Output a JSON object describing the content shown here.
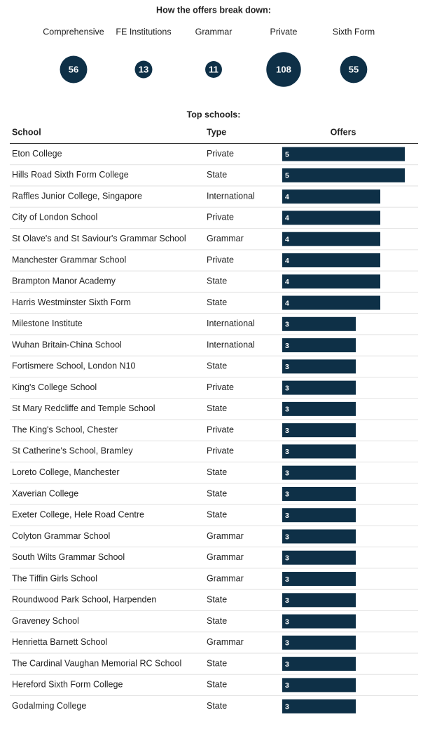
{
  "breakdown": {
    "title": "How the offers break down:",
    "categories": [
      "Comprehensive",
      "FE Institutions",
      "Grammar",
      "Private",
      "Sixth Form"
    ],
    "values": [
      56,
      13,
      11,
      108,
      55
    ]
  },
  "table": {
    "title": "Top schools:",
    "headers": [
      "School",
      "Type",
      "Offers"
    ],
    "rows": [
      [
        "Eton College",
        "Private",
        5
      ],
      [
        "Hills Road Sixth Form College",
        "State",
        5
      ],
      [
        "Raffles Junior College, Singapore",
        "International",
        4
      ],
      [
        "City of London School",
        "Private",
        4
      ],
      [
        "St Olave's and St Saviour's Grammar School",
        "Grammar",
        4
      ],
      [
        "Manchester Grammar School",
        "Private",
        4
      ],
      [
        "Brampton Manor Academy",
        "State",
        4
      ],
      [
        "Harris Westminster Sixth Form",
        "State",
        4
      ],
      [
        "Milestone Institute",
        "International",
        3
      ],
      [
        "Wuhan Britain-China School",
        "International",
        3
      ],
      [
        "Fortismere School, London N10",
        "State",
        3
      ],
      [
        "King's College School",
        "Private",
        3
      ],
      [
        "St Mary Redcliffe and Temple School",
        "State",
        3
      ],
      [
        "The King's School, Chester",
        "Private",
        3
      ],
      [
        "St Catherine's School, Bramley",
        "Private",
        3
      ],
      [
        "Loreto College, Manchester",
        "State",
        3
      ],
      [
        "Xaverian College",
        "State",
        3
      ],
      [
        "Exeter College, Hele Road Centre",
        "State",
        3
      ],
      [
        "Colyton Grammar School",
        "Grammar",
        3
      ],
      [
        "South Wilts Grammar School",
        "Grammar",
        3
      ],
      [
        "The Tiffin Girls School",
        "Grammar",
        3
      ],
      [
        "Roundwood Park School, Harpenden",
        "State",
        3
      ],
      [
        "Graveney School",
        "State",
        3
      ],
      [
        "Henrietta Barnett School",
        "Grammar",
        3
      ],
      [
        "The Cardinal Vaughan Memorial RC School",
        "State",
        3
      ],
      [
        "Hereford Sixth Form College",
        "State",
        3
      ],
      [
        "Godalming College",
        "State",
        3
      ]
    ]
  }
}
